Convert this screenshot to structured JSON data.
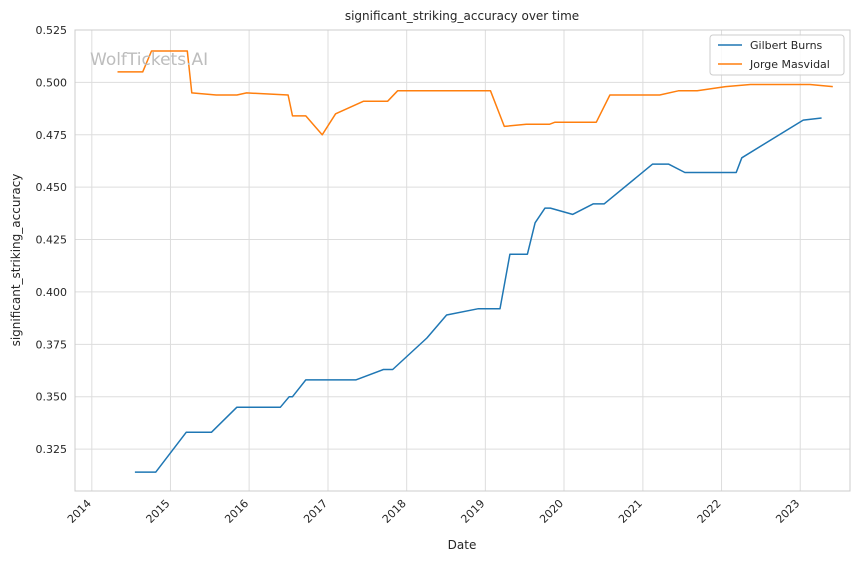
{
  "watermark": "WolfTickets.AI",
  "chart_data": {
    "type": "line",
    "title": "significant_striking_accuracy over time",
    "xlabel": "Date",
    "ylabel": "significant_striking_accuracy",
    "xlim": [
      "2013-10-15",
      "2023-08-20"
    ],
    "ylim": [
      0.305,
      0.525
    ],
    "x_ticks": [
      "2014",
      "2015",
      "2016",
      "2017",
      "2018",
      "2019",
      "2020",
      "2021",
      "2022",
      "2023"
    ],
    "y_ticks": [
      "0.325",
      "0.350",
      "0.375",
      "0.400",
      "0.425",
      "0.450",
      "0.475",
      "0.500",
      "0.525"
    ],
    "grid": true,
    "legend_position": "top-right",
    "series": [
      {
        "name": "Gilbert Burns",
        "color": "#1f77b4",
        "points": [
          [
            "2014-07-20",
            0.314
          ],
          [
            "2014-10-25",
            0.314
          ],
          [
            "2015-03-15",
            0.333
          ],
          [
            "2015-07-10",
            0.333
          ],
          [
            "2015-11-05",
            0.345
          ],
          [
            "2016-05-25",
            0.345
          ],
          [
            "2016-07-05",
            0.35
          ],
          [
            "2016-07-20",
            0.35
          ],
          [
            "2016-09-20",
            0.358
          ],
          [
            "2017-05-10",
            0.358
          ],
          [
            "2017-09-15",
            0.363
          ],
          [
            "2017-10-28",
            0.363
          ],
          [
            "2018-04-05",
            0.378
          ],
          [
            "2018-07-05",
            0.389
          ],
          [
            "2018-11-30",
            0.392
          ],
          [
            "2019-03-10",
            0.392
          ],
          [
            "2019-04-25",
            0.418
          ],
          [
            "2019-07-15",
            0.418
          ],
          [
            "2019-08-20",
            0.433
          ],
          [
            "2019-10-05",
            0.44
          ],
          [
            "2019-10-30",
            0.44
          ],
          [
            "2020-02-10",
            0.437
          ],
          [
            "2020-05-15",
            0.442
          ],
          [
            "2020-07-05",
            0.442
          ],
          [
            "2021-02-15",
            0.461
          ],
          [
            "2021-04-30",
            0.461
          ],
          [
            "2021-07-15",
            0.457
          ],
          [
            "2022-03-10",
            0.457
          ],
          [
            "2022-04-05",
            0.464
          ],
          [
            "2023-01-15",
            0.482
          ],
          [
            "2023-04-10",
            0.483
          ]
        ]
      },
      {
        "name": "Jorge Masvidal",
        "color": "#ff7f0e",
        "points": [
          [
            "2014-04-30",
            0.505
          ],
          [
            "2014-08-25",
            0.505
          ],
          [
            "2014-10-05",
            0.515
          ],
          [
            "2015-03-20",
            0.515
          ],
          [
            "2015-04-10",
            0.495
          ],
          [
            "2015-08-01",
            0.494
          ],
          [
            "2015-11-05",
            0.494
          ],
          [
            "2015-12-20",
            0.495
          ],
          [
            "2016-06-30",
            0.494
          ],
          [
            "2016-07-20",
            0.484
          ],
          [
            "2016-09-20",
            0.484
          ],
          [
            "2016-12-05",
            0.475
          ],
          [
            "2017-02-05",
            0.485
          ],
          [
            "2017-06-15",
            0.491
          ],
          [
            "2017-10-05",
            0.491
          ],
          [
            "2017-11-20",
            0.496
          ],
          [
            "2019-01-25",
            0.496
          ],
          [
            "2019-03-30",
            0.479
          ],
          [
            "2019-07-10",
            0.48
          ],
          [
            "2019-10-25",
            0.48
          ],
          [
            "2019-11-20",
            0.481
          ],
          [
            "2020-05-30",
            0.481
          ],
          [
            "2020-08-01",
            0.494
          ],
          [
            "2021-03-20",
            0.494
          ],
          [
            "2021-06-15",
            0.496
          ],
          [
            "2021-09-10",
            0.496
          ],
          [
            "2022-01-20",
            0.498
          ],
          [
            "2022-05-15",
            0.499
          ],
          [
            "2023-02-15",
            0.499
          ],
          [
            "2023-06-01",
            0.498
          ]
        ]
      }
    ]
  }
}
